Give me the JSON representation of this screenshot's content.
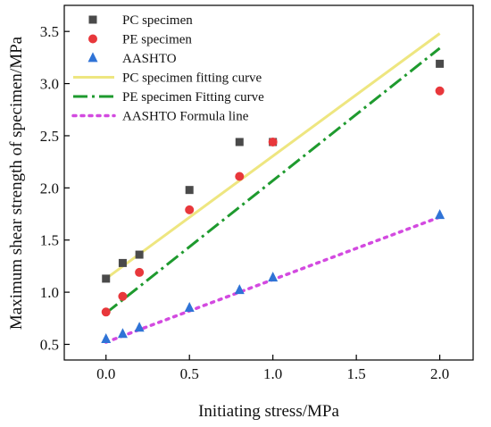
{
  "chart_data": {
    "type": "scatter",
    "title": "",
    "xlabel": "Initiating stress/MPa",
    "ylabel": "Maximum shear strength of specimen/MPa",
    "xlim": [
      -0.25,
      2.2
    ],
    "ylim": [
      0.35,
      3.75
    ],
    "xticks": [
      0.0,
      0.5,
      1.0,
      1.5,
      2.0
    ],
    "xtick_labels": [
      "0.0",
      "0.5",
      "1.0",
      "1.5",
      "2.0"
    ],
    "yticks": [
      0.5,
      1.0,
      1.5,
      2.0,
      2.5,
      3.0,
      3.5
    ],
    "ytick_labels": [
      "0.5",
      "1.0",
      "1.5",
      "2.0",
      "2.5",
      "3.0",
      "3.5"
    ],
    "grid": false,
    "legend_position": "top-left",
    "series": [
      {
        "name": "PC specimen",
        "kind": "scatter",
        "marker": "square",
        "color": "#4a4a4a",
        "x": [
          0.0,
          0.1,
          0.2,
          0.5,
          0.8,
          1.0,
          2.0
        ],
        "y": [
          1.13,
          1.28,
          1.36,
          1.98,
          2.44,
          2.44,
          3.19
        ]
      },
      {
        "name": "PE specimen",
        "kind": "scatter",
        "marker": "circle",
        "color": "#e8373b",
        "x": [
          0.0,
          0.1,
          0.2,
          0.5,
          0.8,
          1.0,
          2.0
        ],
        "y": [
          0.81,
          0.96,
          1.19,
          1.79,
          2.11,
          2.44,
          2.93
        ]
      },
      {
        "name": "AASHTO",
        "kind": "scatter",
        "marker": "triangle",
        "color": "#2f73d6",
        "x": [
          0.0,
          0.1,
          0.2,
          0.5,
          0.8,
          1.0,
          2.0
        ],
        "y": [
          0.55,
          0.6,
          0.66,
          0.85,
          1.02,
          1.14,
          1.74
        ]
      },
      {
        "name": "PC specimen fitting curve",
        "kind": "line",
        "style": "solid",
        "color": "#eee680",
        "x": [
          0.0,
          2.0
        ],
        "y": [
          1.13,
          3.48
        ]
      },
      {
        "name": "PE specimen Fitting curve",
        "kind": "line",
        "style": "dashdot",
        "color": "#1e9a2e",
        "x": [
          0.0,
          2.0
        ],
        "y": [
          0.8,
          3.34
        ]
      },
      {
        "name": "AASHTO Formula line",
        "kind": "line",
        "style": "dotted",
        "color": "#d34ae0",
        "x": [
          0.0,
          2.0
        ],
        "y": [
          0.52,
          1.72
        ]
      }
    ]
  }
}
